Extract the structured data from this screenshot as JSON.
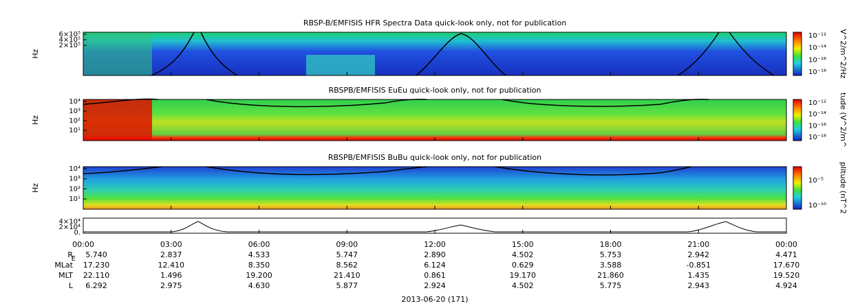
{
  "panels": [
    {
      "title": "RBSP-B/EMFISIS  HFR Spectra Data quick-look only, not for publication",
      "ylabel": "Hz",
      "yticks": [
        "6×10⁵",
        "4×10⁵",
        "2×10⁵"
      ],
      "colorbar": {
        "label": "V^2/m^2/Hz",
        "ticks": [
          "10⁻¹²",
          "10⁻¹⁴",
          "10⁻¹⁶",
          "10⁻¹⁸"
        ]
      }
    },
    {
      "title": "RBSPB/EMFISIS  EuEu quick-look only, not for publication",
      "ylabel": "Hz",
      "yticks": [
        "10⁴",
        "10³",
        "10²",
        "10¹"
      ],
      "colorbar": {
        "label": "tude (V^2/m^",
        "ticks": [
          "10⁻¹²",
          "10⁻¹⁴",
          "10⁻¹⁶",
          "10⁻¹⁸"
        ]
      }
    },
    {
      "title": "RBSPB/EMFISIS  BuBu quick-look only, not for publication",
      "ylabel": "Hz",
      "yticks": [
        "10⁴",
        "10³",
        "10²",
        "10¹"
      ],
      "colorbar": {
        "label": "plitude (nT^2",
        "ticks": [
          "10⁻⁵",
          "10⁻¹⁰"
        ]
      }
    }
  ],
  "altitude_panel": {
    "yticks": [
      "4×10⁴",
      "2×10⁴",
      "0."
    ]
  },
  "time_ticks": [
    "00:00",
    "03:00",
    "06:00",
    "09:00",
    "12:00",
    "15:00",
    "18:00",
    "21:00",
    "00:00"
  ],
  "ephemeris": [
    {
      "label": "R",
      "subscript": "E",
      "values": [
        "5.740",
        "2.837",
        "4.533",
        "5.747",
        "2.890",
        "4.502",
        "5.753",
        "2.942",
        "4.471"
      ]
    },
    {
      "label": "MLat",
      "values": [
        "17.230",
        "12.410",
        "8.350",
        "8.562",
        "6.124",
        "0.629",
        "3.588",
        "-0.851",
        "17.670"
      ]
    },
    {
      "label": "MLT",
      "values": [
        "22.110",
        "1.496",
        "19.200",
        "21.410",
        "0.861",
        "19.170",
        "21.860",
        "1.435",
        "19.520"
      ]
    },
    {
      "label": "L",
      "values": [
        "6.292",
        "2.975",
        "4.630",
        "5.877",
        "2.924",
        "4.502",
        "5.775",
        "2.943",
        "4.924"
      ]
    }
  ],
  "date": "2013-06-20 (171)"
}
